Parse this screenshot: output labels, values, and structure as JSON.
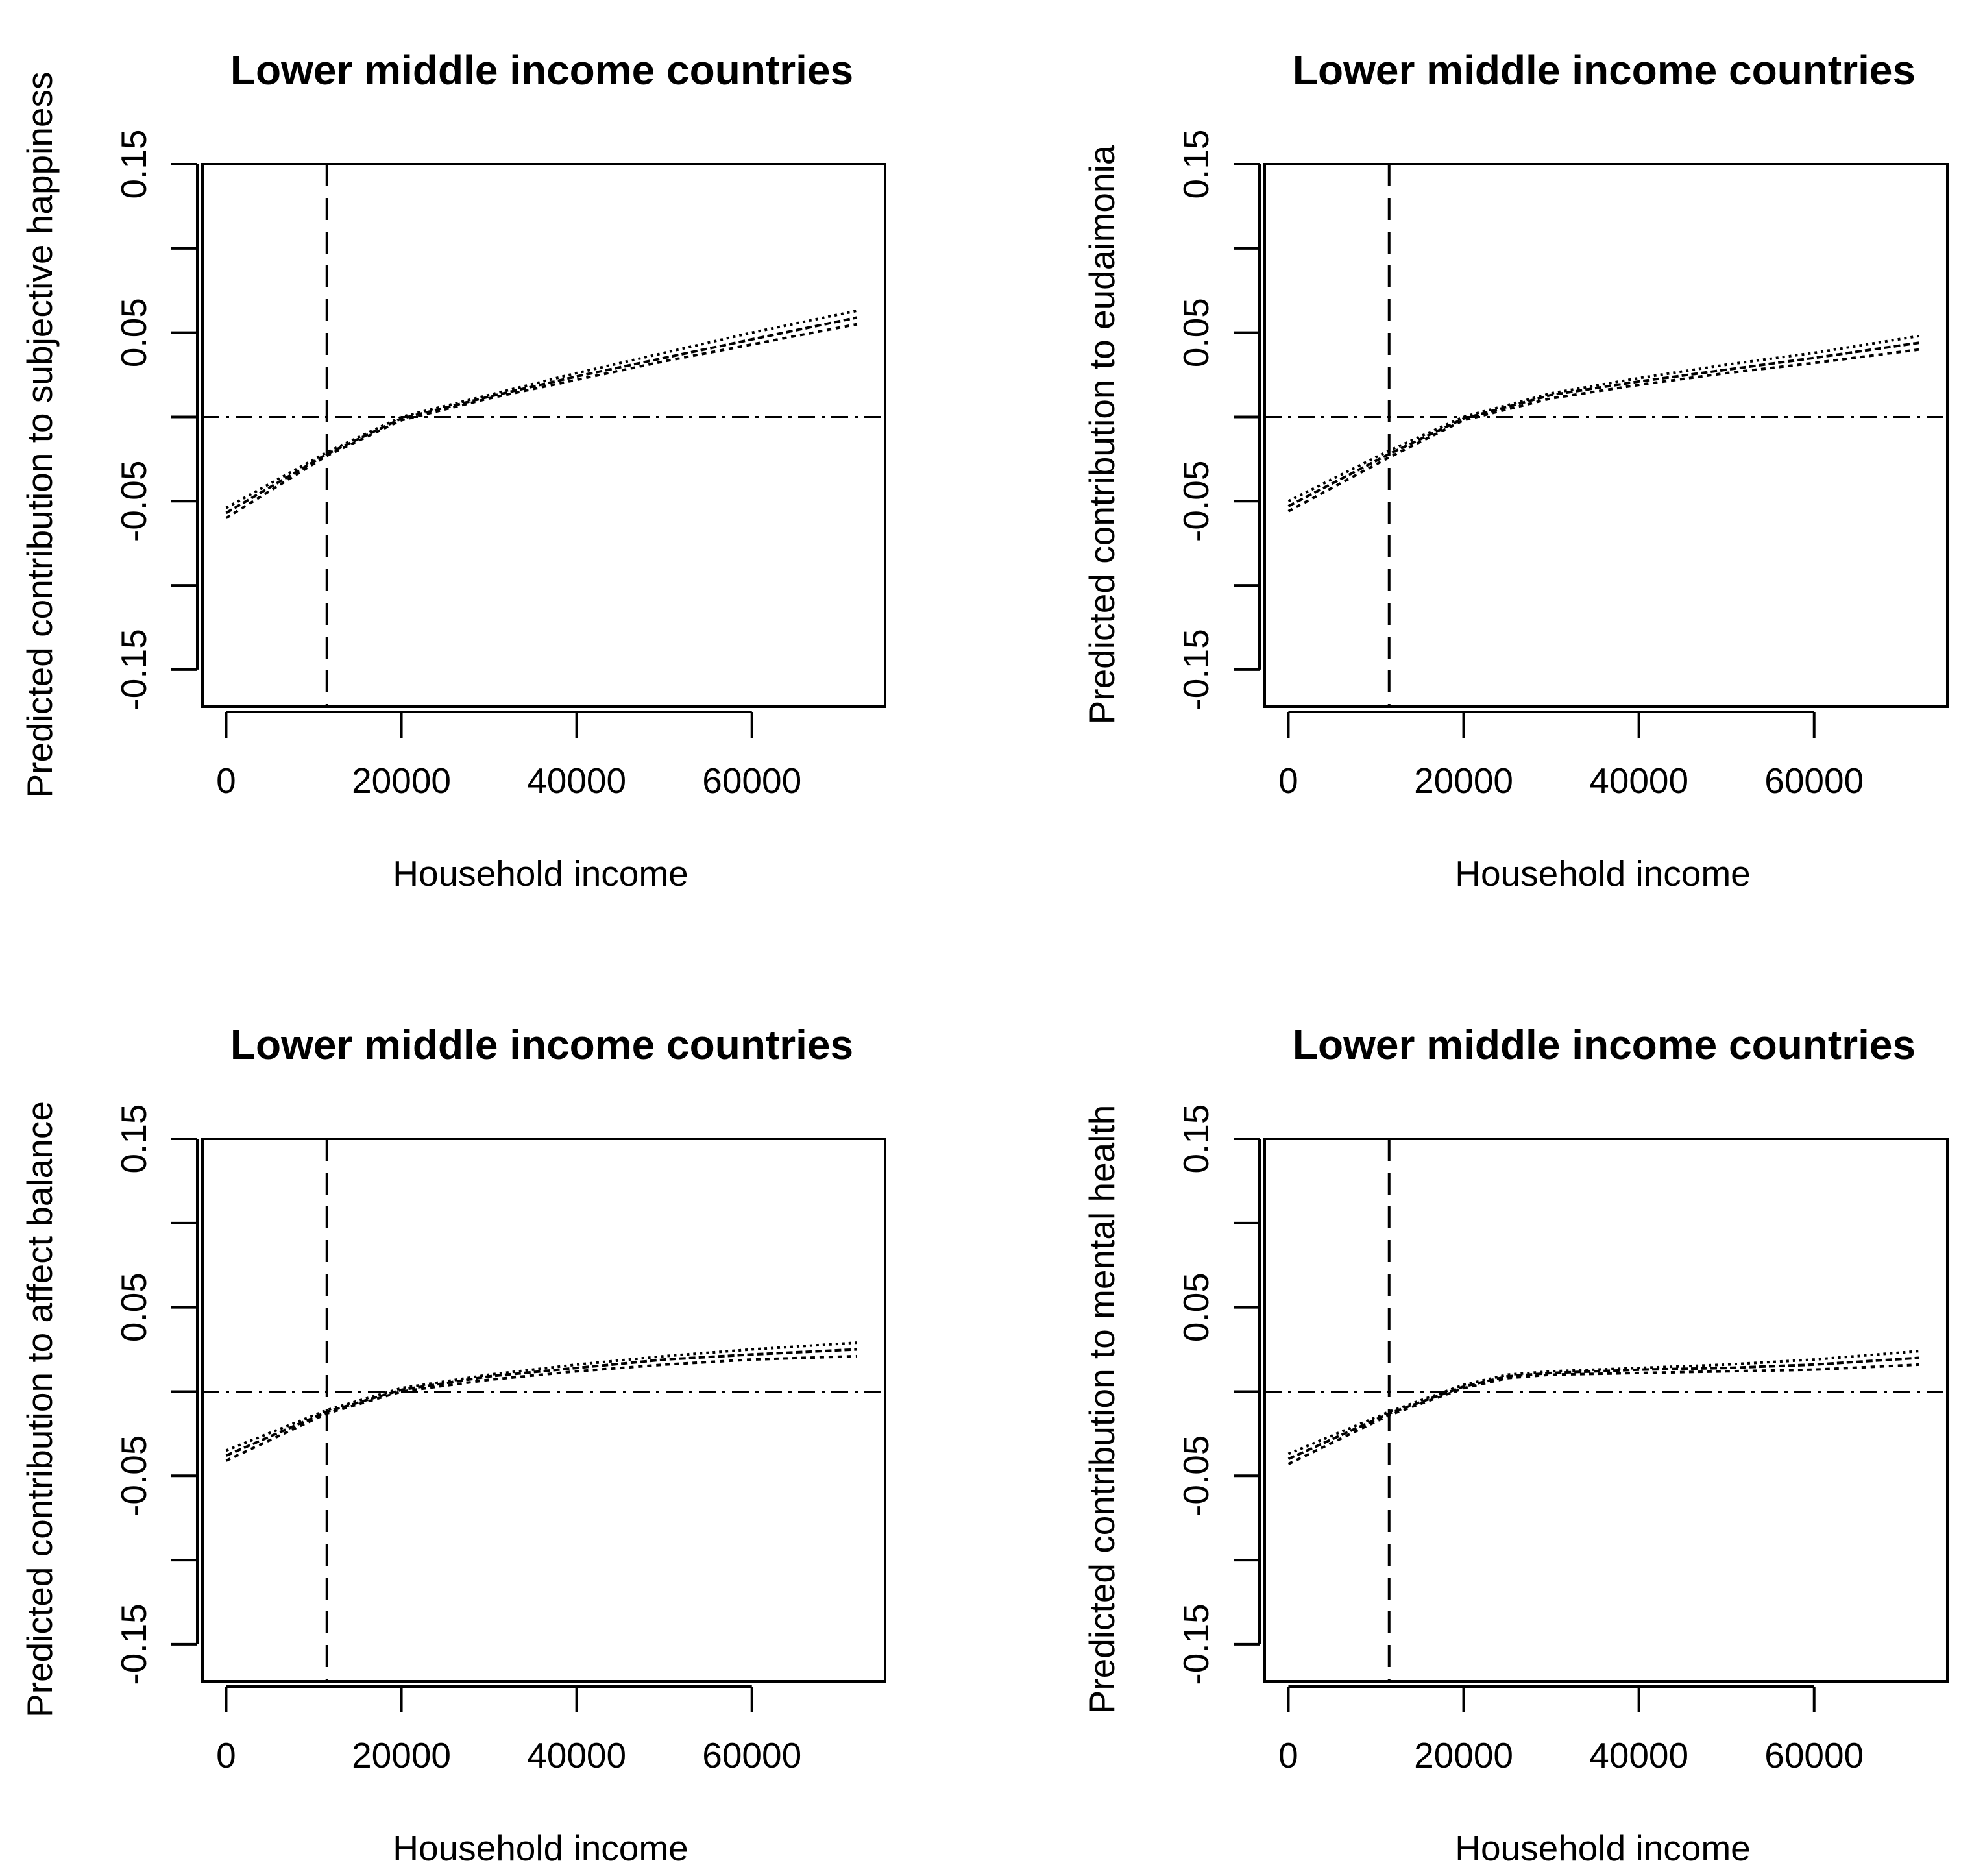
{
  "chart_data": [
    {
      "type": "line",
      "title": "Lower middle income countries",
      "xlabel": "Household income",
      "ylabel": "Predicted contribution to subjective happiness",
      "xlim": [
        -2700,
        75200
      ],
      "ylim": [
        -0.172,
        0.15
      ],
      "xticks": [
        0,
        20000,
        40000,
        60000
      ],
      "xtick_labels": [
        "0",
        "20000",
        "40000",
        "60000"
      ],
      "yticks": [
        -0.15,
        -0.1,
        -0.05,
        0,
        0.05,
        0.1,
        0.15
      ],
      "ytick_labels": [
        "-0.15",
        "",
        "-0.05",
        "",
        "0.05",
        "",
        "0.15"
      ],
      "vline": 11500,
      "hline": 0,
      "grid": false,
      "series": [
        {
          "x": [
            0,
            11500,
            20000,
            30000,
            40000,
            50000,
            60000,
            72000
          ],
          "y": [
            -0.06,
            -0.023,
            -0.002,
            0.011,
            0.022,
            0.033,
            0.043,
            0.055
          ]
        },
        {
          "x": [
            0,
            11500,
            20000,
            30000,
            40000,
            50000,
            60000,
            72000
          ],
          "y": [
            -0.057,
            -0.022,
            -0.001,
            0.012,
            0.024,
            0.035,
            0.046,
            0.059
          ]
        },
        {
          "x": [
            0,
            11500,
            20000,
            30000,
            40000,
            50000,
            60000,
            72000
          ],
          "y": [
            -0.054,
            -0.021,
            0.0,
            0.013,
            0.026,
            0.038,
            0.05,
            0.063
          ]
        }
      ]
    },
    {
      "type": "line",
      "title": "Lower middle income countries",
      "xlabel": "Household income",
      "ylabel": "Predicted contribution to eudaimonia",
      "xlim": [
        -2700,
        75200
      ],
      "ylim": [
        -0.172,
        0.15
      ],
      "xticks": [
        0,
        20000,
        40000,
        60000
      ],
      "xtick_labels": [
        "0",
        "20000",
        "40000",
        "60000"
      ],
      "yticks": [
        -0.15,
        -0.1,
        -0.05,
        0,
        0.05,
        0.1,
        0.15
      ],
      "ytick_labels": [
        "-0.15",
        "",
        "-0.05",
        "",
        "0.05",
        "",
        "0.15"
      ],
      "vline": 11500,
      "hline": 0,
      "grid": false,
      "series": [
        {
          "x": [
            0,
            11500,
            20000,
            30000,
            40000,
            50000,
            60000,
            72000
          ],
          "y": [
            -0.056,
            -0.024,
            -0.002,
            0.011,
            0.019,
            0.026,
            0.032,
            0.04
          ]
        },
        {
          "x": [
            0,
            11500,
            20000,
            30000,
            40000,
            50000,
            60000,
            72000
          ],
          "y": [
            -0.053,
            -0.022,
            -0.001,
            0.013,
            0.021,
            0.028,
            0.035,
            0.044
          ]
        },
        {
          "x": [
            0,
            11500,
            20000,
            30000,
            40000,
            50000,
            60000,
            72000
          ],
          "y": [
            -0.05,
            -0.02,
            0.0,
            0.014,
            0.023,
            0.031,
            0.038,
            0.048
          ]
        }
      ]
    },
    {
      "type": "line",
      "title": "Lower middle income countries",
      "xlabel": "Household income",
      "ylabel": "Predicted contribution to affect balance",
      "xlim": [
        -2700,
        75200
      ],
      "ylim": [
        -0.172,
        0.15
      ],
      "xticks": [
        0,
        20000,
        40000,
        60000
      ],
      "xtick_labels": [
        "0",
        "20000",
        "40000",
        "60000"
      ],
      "yticks": [
        -0.15,
        -0.1,
        -0.05,
        0,
        0.05,
        0.1,
        0.15
      ],
      "ytick_labels": [
        "-0.15",
        "",
        "-0.05",
        "",
        "0.05",
        "",
        "0.15"
      ],
      "vline": 11500,
      "hline": 0,
      "grid": false,
      "series": [
        {
          "x": [
            0,
            11500,
            20000,
            30000,
            40000,
            50000,
            60000,
            72000
          ],
          "y": [
            -0.041,
            -0.013,
            0.0,
            0.007,
            0.012,
            0.016,
            0.019,
            0.021
          ]
        },
        {
          "x": [
            0,
            11500,
            20000,
            30000,
            40000,
            50000,
            60000,
            72000
          ],
          "y": [
            -0.038,
            -0.012,
            0.001,
            0.009,
            0.014,
            0.019,
            0.022,
            0.025
          ]
        },
        {
          "x": [
            0,
            11500,
            20000,
            30000,
            40000,
            50000,
            60000,
            72000
          ],
          "y": [
            -0.035,
            -0.011,
            0.002,
            0.01,
            0.016,
            0.021,
            0.025,
            0.029
          ]
        }
      ]
    },
    {
      "type": "line",
      "title": "Lower middle income countries",
      "xlabel": "Household income",
      "ylabel": "Predicted contribution to mental health",
      "xlim": [
        -2700,
        75200
      ],
      "ylim": [
        -0.172,
        0.15
      ],
      "xticks": [
        0,
        20000,
        40000,
        60000
      ],
      "xtick_labels": [
        "0",
        "20000",
        "40000",
        "60000"
      ],
      "yticks": [
        -0.15,
        -0.1,
        -0.05,
        0,
        0.05,
        0.1,
        0.15
      ],
      "ytick_labels": [
        "-0.15",
        "",
        "-0.05",
        "",
        "0.05",
        "",
        "0.15"
      ],
      "vline": 11500,
      "hline": 0,
      "grid": false,
      "series": [
        {
          "x": [
            0,
            11500,
            20000,
            25000,
            30000,
            40000,
            50000,
            60000,
            72000
          ],
          "y": [
            -0.043,
            -0.014,
            0.002,
            0.008,
            0.01,
            0.011,
            0.012,
            0.013,
            0.016
          ]
        },
        {
          "x": [
            0,
            11500,
            20000,
            25000,
            30000,
            40000,
            50000,
            60000,
            72000
          ],
          "y": [
            -0.04,
            -0.013,
            0.003,
            0.009,
            0.011,
            0.013,
            0.014,
            0.016,
            0.02
          ]
        },
        {
          "x": [
            0,
            11500,
            20000,
            25000,
            30000,
            40000,
            50000,
            60000,
            72000
          ],
          "y": [
            -0.037,
            -0.012,
            0.004,
            0.01,
            0.012,
            0.014,
            0.016,
            0.019,
            0.024
          ]
        }
      ]
    }
  ]
}
